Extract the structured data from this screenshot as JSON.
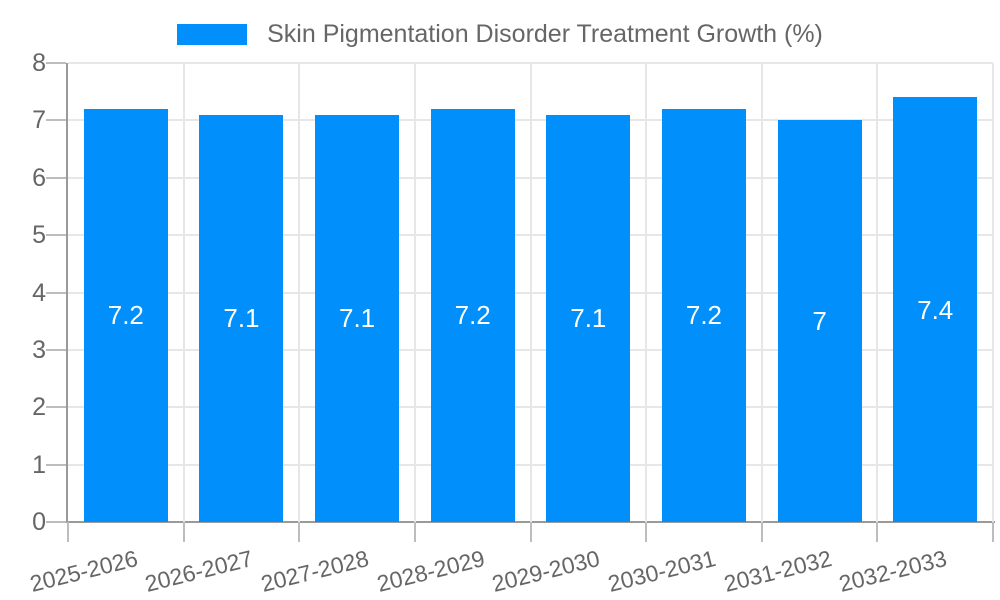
{
  "chart_data": {
    "type": "bar",
    "title": "Skin Pigmentation Disorder Treatment Growth (%)",
    "legend_position": "top",
    "categories": [
      "2025-2026",
      "2026-2027",
      "2027-2028",
      "2028-2029",
      "2029-2030",
      "2030-2031",
      "2031-2032",
      "2032-2033"
    ],
    "series": [
      {
        "name": "Skin Pigmentation Disorder Treatment Growth (%)",
        "values": [
          7.2,
          7.1,
          7.1,
          7.2,
          7.1,
          7.2,
          7,
          7.4
        ]
      }
    ],
    "value_labels": [
      "7.2",
      "7.1",
      "7.1",
      "7.2",
      "7.1",
      "7.2",
      "7",
      "7.4"
    ],
    "xlabel": "",
    "ylabel": "",
    "ylim": [
      0,
      8
    ],
    "ytick_step": 1,
    "ytick_labels": [
      "0",
      "1",
      "2",
      "3",
      "4",
      "5",
      "6",
      "7",
      "8"
    ],
    "grid": true,
    "colors": {
      "bar": "#008FFB",
      "grid": "#e7e7e7",
      "axis": "#9a9a9a",
      "tick": "#bdbdbd",
      "label": "#666666",
      "value_label": "#ffffff",
      "background": "#ffffff"
    }
  }
}
